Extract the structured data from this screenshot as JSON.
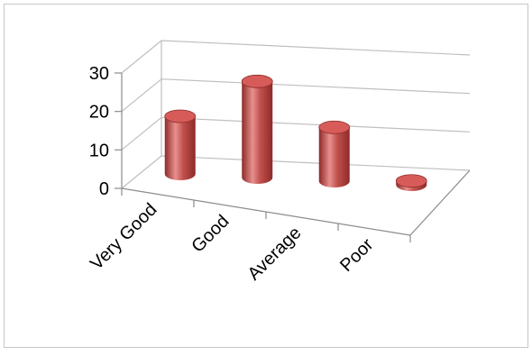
{
  "chart_data": {
    "type": "bar",
    "style": "3d-cylinder",
    "categories": [
      "Very Good",
      "Good",
      "Average",
      "Poor"
    ],
    "values": [
      15,
      25,
      14,
      1
    ],
    "ylim": [
      0,
      30
    ],
    "yticks": [
      0,
      10,
      20,
      30
    ],
    "ytick_labels": [
      "0",
      "10",
      "20",
      "30"
    ],
    "grid": true,
    "legend": "none",
    "colors": {
      "bar": "#c0504d",
      "bar_dark": "#8e2b29",
      "bar_light": "#e7908d",
      "bar_top": "#d75c59",
      "grid": "#bfbfbf",
      "axis": "#8c8c8c"
    }
  }
}
